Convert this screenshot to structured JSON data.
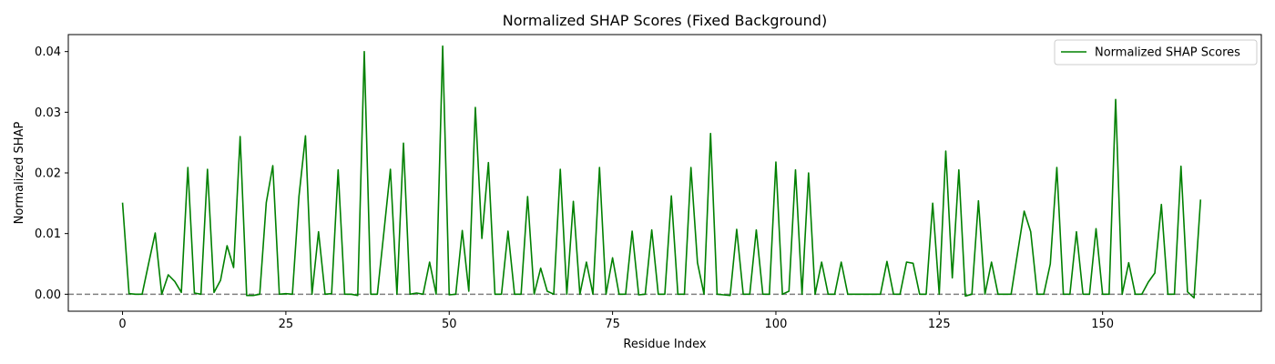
{
  "chart_data": {
    "type": "line",
    "title": "Normalized SHAP Scores (Fixed Background)",
    "xlabel": "Residue Index",
    "ylabel": "Normalized SHAP",
    "xlim": [
      -8.3,
      174.3
    ],
    "ylim": [
      -0.0028,
      0.0428
    ],
    "x_ticks": [
      0,
      25,
      50,
      75,
      100,
      125,
      150
    ],
    "x_tick_labels": [
      "0",
      "25",
      "50",
      "75",
      "100",
      "125",
      "150"
    ],
    "y_ticks": [
      0.0,
      0.01,
      0.02,
      0.03,
      0.04
    ],
    "y_tick_labels": [
      "0.00",
      "0.01",
      "0.02",
      "0.03",
      "0.04"
    ],
    "grid": false,
    "legend_position": "top-right",
    "reference_line": {
      "y": 0,
      "style": "dashed",
      "color": "#808080"
    },
    "series": [
      {
        "name": "Normalized SHAP Scores",
        "color": "#008000",
        "x": [
          0,
          1,
          2,
          3,
          4,
          5,
          6,
          7,
          8,
          9,
          10,
          11,
          12,
          13,
          14,
          15,
          16,
          17,
          18,
          19,
          20,
          21,
          22,
          23,
          24,
          25,
          26,
          27,
          28,
          29,
          30,
          31,
          32,
          33,
          34,
          35,
          36,
          37,
          38,
          39,
          40,
          41,
          42,
          43,
          44,
          45,
          46,
          47,
          48,
          49,
          50,
          51,
          52,
          53,
          54,
          55,
          56,
          57,
          58,
          59,
          60,
          61,
          62,
          63,
          64,
          65,
          66,
          67,
          68,
          69,
          70,
          71,
          72,
          73,
          74,
          75,
          76,
          77,
          78,
          79,
          80,
          81,
          82,
          83,
          84,
          85,
          86,
          87,
          88,
          89,
          90,
          91,
          92,
          93,
          94,
          95,
          96,
          97,
          98,
          99,
          100,
          101,
          102,
          103,
          104,
          105,
          106,
          107,
          108,
          109,
          110,
          111,
          112,
          113,
          114,
          115,
          116,
          117,
          118,
          119,
          120,
          121,
          122,
          123,
          124,
          125,
          126,
          127,
          128,
          129,
          130,
          131,
          132,
          133,
          134,
          135,
          136,
          137,
          138,
          139,
          140,
          141,
          142,
          143,
          144,
          145,
          146,
          147,
          148,
          149,
          150,
          151,
          152,
          153,
          154,
          155,
          156,
          157,
          158,
          159,
          160,
          161,
          162,
          163,
          164,
          165
        ],
        "values": [
          0.0151,
          0.0001,
          0.0,
          0.0,
          0.0051,
          0.0101,
          0.0,
          0.0032,
          0.0021,
          0.0003,
          0.0209,
          0.0002,
          0.0,
          0.0206,
          0.0003,
          0.0023,
          0.008,
          0.0044,
          0.026,
          -0.0002,
          -0.0002,
          0.0,
          0.0151,
          0.0212,
          0.0,
          0.0001,
          0.0,
          0.0161,
          0.0261,
          0.0,
          0.0103,
          0.0,
          0.0001,
          0.0205,
          0.0,
          0.0,
          -0.0002,
          0.04,
          0.0,
          0.0,
          0.0102,
          0.0206,
          0.0,
          0.0249,
          0.0,
          0.0002,
          0.0,
          0.0053,
          0.0,
          0.0409,
          -0.0001,
          0.0,
          0.0105,
          0.0005,
          0.0308,
          0.0092,
          0.0217,
          0.0,
          0.0,
          0.0104,
          0.0,
          0.0,
          0.0161,
          0.0,
          0.0043,
          0.0005,
          0.0,
          0.0206,
          0.0,
          0.0153,
          0.0,
          0.0053,
          0.0,
          0.0209,
          0.0,
          0.006,
          0.0,
          0.0,
          0.0104,
          -0.0001,
          0.0,
          0.0106,
          0.0,
          0.0,
          0.0162,
          0.0,
          0.0,
          0.0209,
          0.0052,
          0.0,
          0.0265,
          0.0,
          -0.0001,
          -0.0002,
          0.0107,
          0.0,
          0.0,
          0.0106,
          0.0,
          0.0,
          0.0218,
          0.0,
          0.0005,
          0.0205,
          0.0,
          0.02,
          0.0,
          0.0053,
          0.0,
          0.0,
          0.0053,
          0.0,
          0.0,
          0.0,
          0.0,
          0.0,
          0.0,
          0.0054,
          0.0,
          0.0,
          0.0053,
          0.0051,
          0.0,
          0.0,
          0.015,
          0.0,
          0.0236,
          0.0027,
          0.0205,
          -0.0003,
          0.0,
          0.0154,
          0.0,
          0.0053,
          0.0,
          0.0,
          0.0,
          0.0069,
          0.0137,
          0.0103,
          0.0,
          0.0,
          0.005,
          0.0209,
          0.0,
          0.0,
          0.0103,
          0.0,
          0.0,
          0.0108,
          0.0,
          0.0,
          0.0321,
          0.0,
          0.0052,
          0.0,
          0.0,
          0.002,
          0.0035,
          0.0148,
          0.0,
          0.0,
          0.0211,
          0.0004,
          -0.0006,
          0.0156
        ]
      }
    ]
  }
}
